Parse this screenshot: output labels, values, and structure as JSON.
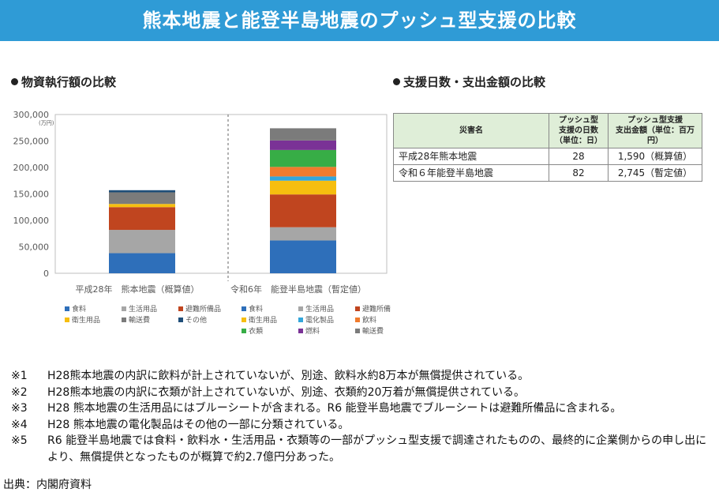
{
  "header": {
    "title": "熊本地震と能登半島地震のプッシュ型支援の比較"
  },
  "left_section": {
    "title": "物資執行額の比較"
  },
  "right_section": {
    "title": "支援日数・支出金額の比較"
  },
  "chart_data": {
    "type": "bar",
    "stacked": true,
    "y_unit": "(万円)",
    "ylim": [
      0,
      300000
    ],
    "yticks": [
      "300,000",
      "250,000",
      "200,000",
      "150,000",
      "100,000",
      "50,000",
      "0"
    ],
    "categories": [
      "平成28年　熊本地震（概算値）",
      "令和6年　能登半島地震（暫定値）"
    ],
    "series": [
      {
        "name": "食料",
        "color": "#2e6fba",
        "values": [
          38000,
          62000
        ]
      },
      {
        "name": "生活用品",
        "color": "#a6a6a6",
        "values": [
          44000,
          25000
        ]
      },
      {
        "name": "避難所備品",
        "color": "#c0451f",
        "values": [
          43000,
          62000
        ]
      },
      {
        "name": "衛生用品",
        "color": "#f6be0f",
        "values": [
          6000,
          26000
        ]
      },
      {
        "name": "電化製品",
        "color": "#33a6db",
        "values": [
          0,
          8000
        ]
      },
      {
        "name": "飲料",
        "color": "#f07b2d",
        "values": [
          0,
          18000
        ]
      },
      {
        "name": "衣類",
        "color": "#37ad46",
        "values": [
          0,
          32000
        ]
      },
      {
        "name": "燃料",
        "color": "#7a3296",
        "values": [
          0,
          18000
        ]
      },
      {
        "name": "輸送費",
        "color": "#7b7b7b",
        "values": [
          22000,
          23000
        ]
      },
      {
        "name": "その他",
        "color": "#1f4e79",
        "values": [
          4000,
          0
        ]
      }
    ],
    "legends": [
      [
        "食料",
        "生活用品",
        "避難所備品",
        "衛生用品",
        "輸送費",
        "その他"
      ],
      [
        "食料",
        "生活用品",
        "避難所備品",
        "衛生用品",
        "電化製品",
        "飲料",
        "衣類",
        "燃料",
        "輸送費"
      ]
    ]
  },
  "table": {
    "headers": [
      "災害名",
      "プッシュ型\n支援の日数\n（単位：日）",
      "プッシュ型支援\n支出金額（単位：百万円）"
    ],
    "rows": [
      [
        "平成28年熊本地震",
        "28",
        "1,590（概算値）"
      ],
      [
        "令和６年能登半島地震",
        "82",
        "2,745（暫定値）"
      ]
    ]
  },
  "notes": [
    {
      "mark": "※1",
      "text": "H28熊本地震の内訳に飲料が計上されていないが、別途、飲料水約8万本が無償提供されている。"
    },
    {
      "mark": "※2",
      "text": "H28熊本地震の内訳に衣類が計上されていないが、別途、衣類約20万着が無償提供されている。"
    },
    {
      "mark": "※3",
      "text": "H28 熊本地震の生活用品にはブルーシートが含まれる。R6 能登半島地震でブルーシートは避難所備品に含まれる。"
    },
    {
      "mark": "※4",
      "text": "H28 熊本地震の電化製品はその他の一部に分類されている。"
    },
    {
      "mark": "※5",
      "text": "R6 能登半島地震では食料・飲料水・生活用品・衣類等の一部がプッシュ型支援で調達されたものの、最終的に企業側からの申し出により、無償提供となったものが概算で約2.7億円分あった。"
    }
  ],
  "source": "出典：内閣府資料"
}
